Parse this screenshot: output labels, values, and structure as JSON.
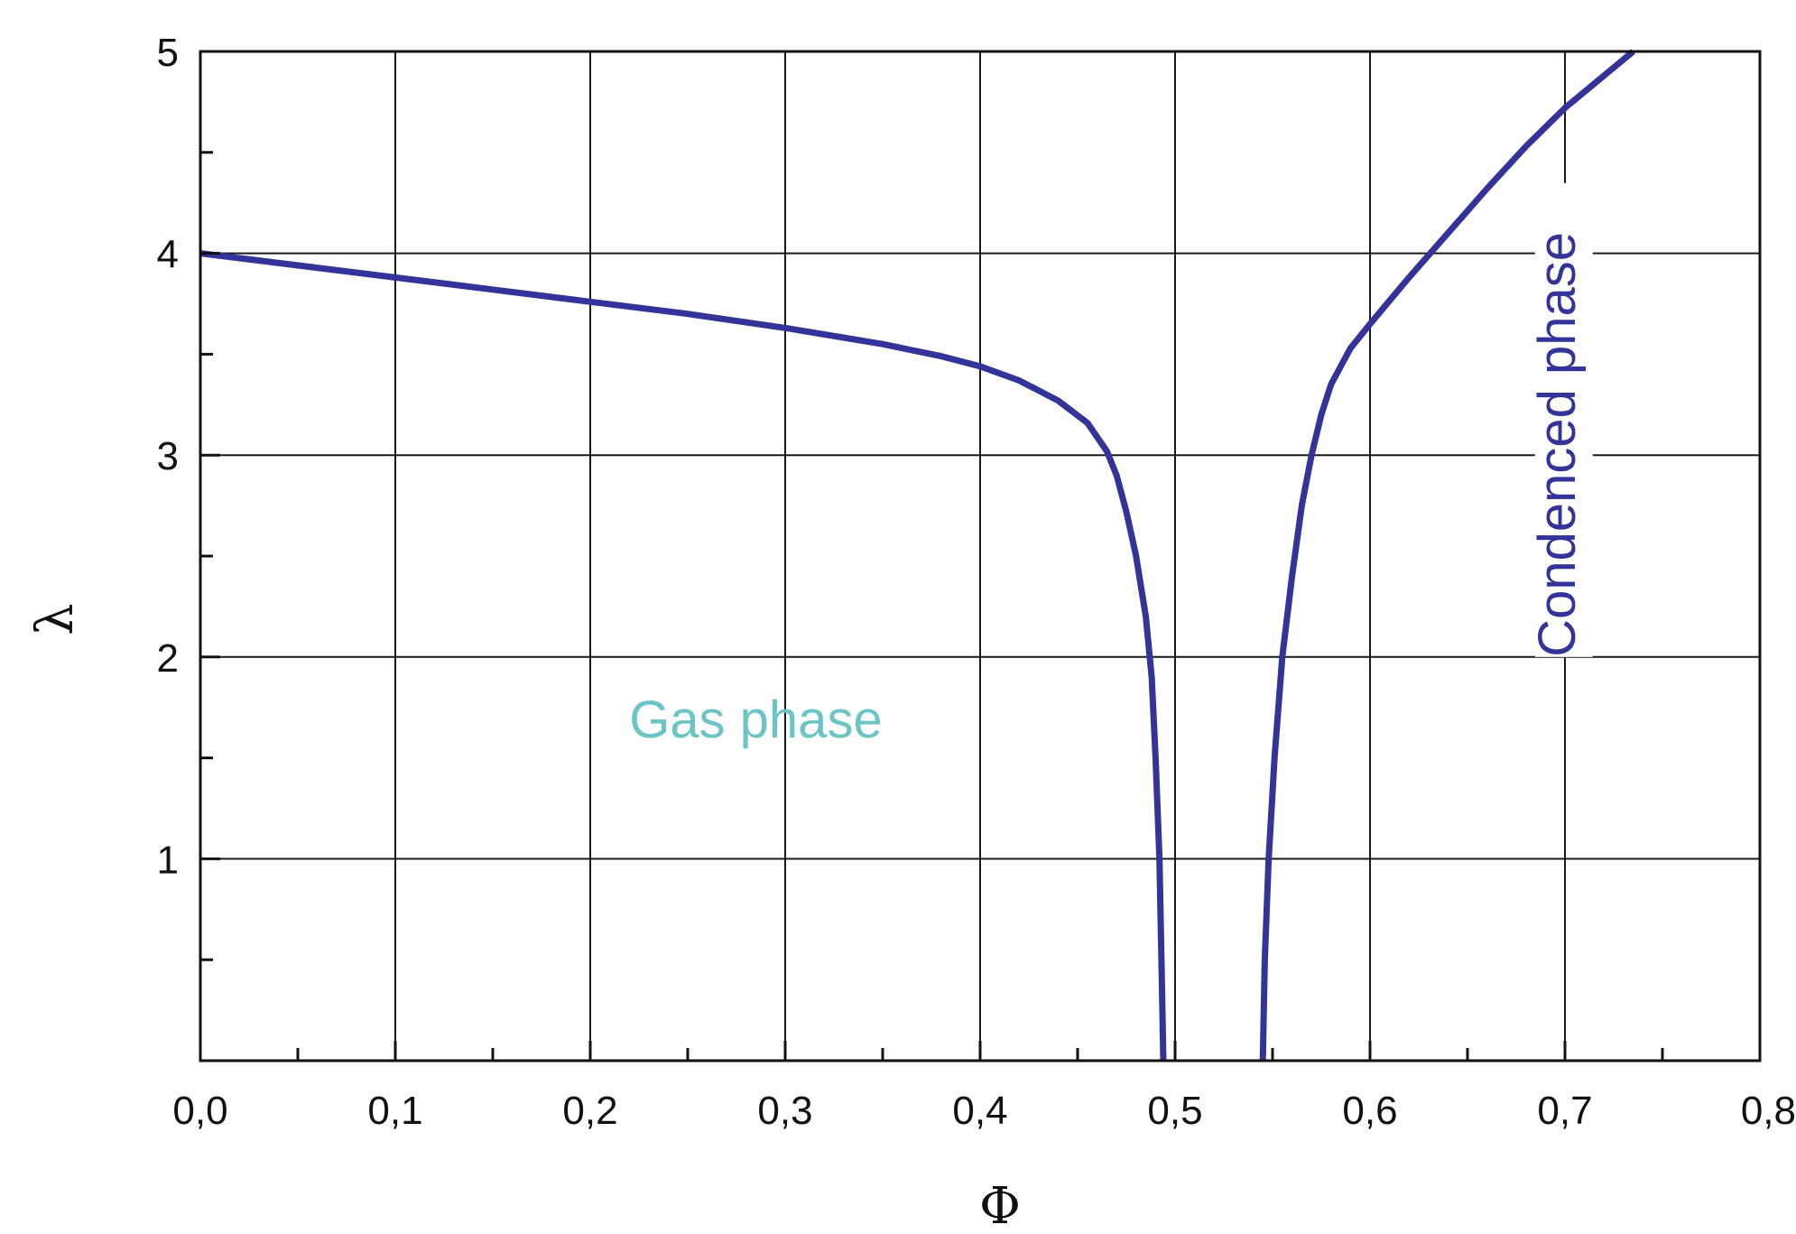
{
  "chart_data": {
    "type": "line",
    "xlabel": "Φ",
    "ylabel": "λ",
    "xlim": [
      0.0,
      0.8
    ],
    "ylim": [
      0.0,
      5.0
    ],
    "x_ticks": [
      "0,0",
      "0,1",
      "0,2",
      "0,3",
      "0,4",
      "0,5",
      "0,6",
      "0,7",
      "0,8"
    ],
    "y_ticks": [
      "1",
      "2",
      "3",
      "4",
      "5"
    ],
    "grid": true,
    "series_color": "#33339a",
    "series": [
      {
        "x": [
          0.0,
          0.05,
          0.1,
          0.15,
          0.2,
          0.25,
          0.3,
          0.35,
          0.38,
          0.4,
          0.42,
          0.44,
          0.455,
          0.465,
          0.47,
          0.475,
          0.48,
          0.485,
          0.488,
          0.49,
          0.492,
          0.493,
          0.494
        ],
        "y": [
          4.0,
          3.94,
          3.88,
          3.82,
          3.76,
          3.7,
          3.63,
          3.55,
          3.49,
          3.44,
          3.37,
          3.27,
          3.16,
          3.02,
          2.9,
          2.72,
          2.5,
          2.2,
          1.9,
          1.5,
          1.0,
          0.5,
          0.0
        ]
      },
      {
        "x": [
          0.545,
          0.546,
          0.548,
          0.551,
          0.555,
          0.56,
          0.565,
          0.57,
          0.575,
          0.58,
          0.59,
          0.6,
          0.62,
          0.64,
          0.66,
          0.68,
          0.7,
          0.72,
          0.735
        ],
        "y": [
          0.0,
          0.5,
          1.0,
          1.5,
          2.0,
          2.4,
          2.75,
          3.0,
          3.2,
          3.35,
          3.53,
          3.65,
          3.88,
          4.1,
          4.32,
          4.53,
          4.72,
          4.88,
          5.0
        ]
      }
    ],
    "annotations": [
      {
        "text": "Gas phase",
        "x": 0.22,
        "y": 1.6,
        "color": "#6cc5c5"
      },
      {
        "text": "Condenced phase",
        "x": 0.705,
        "y": 2.0,
        "color": "#33339a",
        "rotation": -90
      }
    ]
  }
}
